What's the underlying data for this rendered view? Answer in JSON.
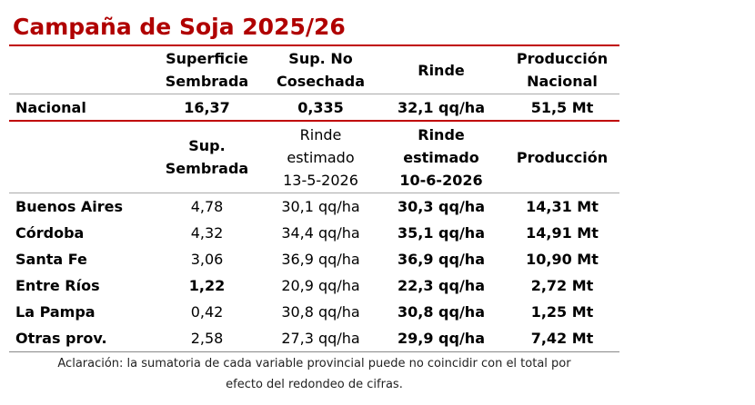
{
  "title": "Campaña de Soja 2025/26",
  "national": {
    "header": [
      [
        "Superficie",
        "Sembrada"
      ],
      [
        "Sup. No",
        "Cosechada"
      ],
      [
        "Rinde"
      ],
      [
        "Producción",
        "Nacional"
      ]
    ],
    "row": [
      "Nacional",
      "16,37",
      "0,335",
      "32,1 qq/ha",
      "51,5 Mt"
    ]
  },
  "provincial": {
    "header": [
      [
        "Sup.",
        "Sembrada"
      ],
      [
        "Rinde",
        "estimado",
        "13-5-2026"
      ],
      [
        "Rinde",
        "estimado",
        "10-6-2026"
      ],
      [
        "Producción"
      ]
    ],
    "rows": [
      [
        "Buenos Aires",
        "4,78",
        "30,1 qq/ha",
        "30,3 qq/ha",
        "14,31 Mt"
      ],
      [
        "Córdoba",
        "4,32",
        "34,4 qq/ha",
        "35,1 qq/ha",
        "14,91 Mt"
      ],
      [
        "Santa Fe",
        "3,06",
        "36,9 qq/ha",
        "36,9 qq/ha",
        "10,90 Mt"
      ],
      [
        "Entre Ríos",
        "1,22",
        "20,9 qq/ha",
        "22,3 qq/ha",
        "2,72 Mt"
      ],
      [
        "La Pampa",
        "0,42",
        "30,8 qq/ha",
        "30,8 qq/ha",
        "1,25 Mt"
      ],
      [
        "Otras prov.",
        "2,58",
        "27,3 qq/ha",
        "29,9 qq/ha",
        "7,42 Mt"
      ]
    ]
  },
  "note": [
    "Aclaración: la sumatoria de cada variable provincial puede no coincidir con el total por",
    "efecto del redondeo de cifras."
  ]
}
